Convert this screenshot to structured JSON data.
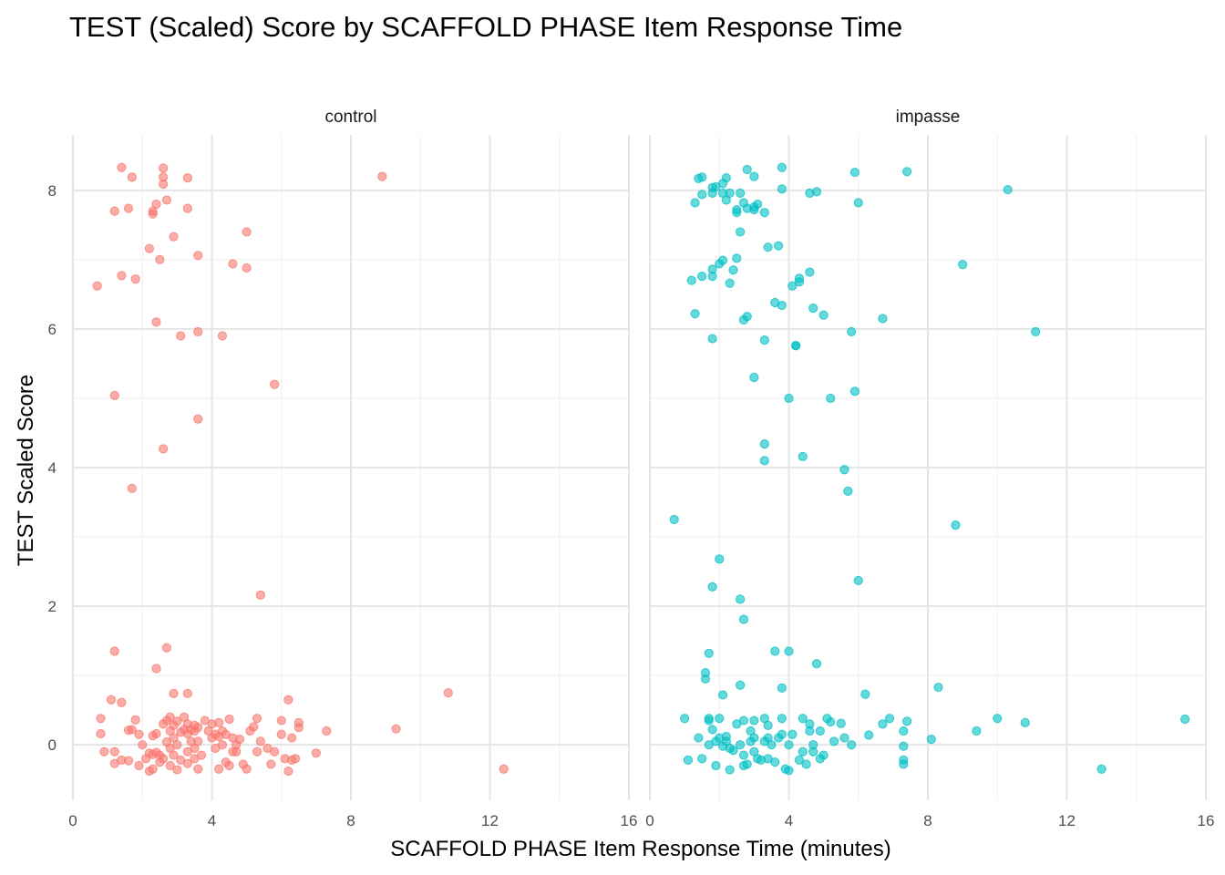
{
  "chart_data": {
    "type": "scatter",
    "title": "TEST (Scaled) Score by SCAFFOLD PHASE Item Response Time",
    "xlabel": "SCAFFOLD PHASE Item Response Time (minutes)",
    "ylabel": "TEST Scaled Score",
    "xlim": [
      0,
      16
    ],
    "ylim": [
      -0.8,
      8.8
    ],
    "x_ticks": [
      "0",
      "4",
      "8",
      "12",
      "16"
    ],
    "y_ticks": [
      "0",
      "2",
      "4",
      "6",
      "8"
    ],
    "grid": true,
    "legend": "none",
    "panels": [
      {
        "name": "control",
        "color": "#F8766D",
        "points": [
          [
            1.4,
            8.33
          ],
          [
            1.7,
            8.19
          ],
          [
            2.6,
            8.32
          ],
          [
            2.6,
            8.19
          ],
          [
            2.6,
            8.09
          ],
          [
            3.3,
            8.18
          ],
          [
            8.9,
            8.2
          ],
          [
            1.2,
            7.7
          ],
          [
            1.6,
            7.74
          ],
          [
            2.3,
            7.7
          ],
          [
            2.3,
            7.66
          ],
          [
            2.4,
            7.8
          ],
          [
            2.7,
            7.86
          ],
          [
            3.3,
            7.74
          ],
          [
            2.2,
            7.16
          ],
          [
            2.5,
            7.0
          ],
          [
            2.9,
            7.33
          ],
          [
            3.6,
            7.06
          ],
          [
            5.0,
            7.4
          ],
          [
            4.6,
            6.94
          ],
          [
            5.0,
            6.88
          ],
          [
            0.7,
            6.62
          ],
          [
            1.4,
            6.77
          ],
          [
            1.8,
            6.72
          ],
          [
            2.4,
            6.1
          ],
          [
            3.1,
            5.9
          ],
          [
            3.6,
            5.96
          ],
          [
            4.3,
            5.9
          ],
          [
            1.2,
            5.04
          ],
          [
            5.8,
            5.2
          ],
          [
            3.6,
            4.7
          ],
          [
            2.6,
            4.27
          ],
          [
            1.7,
            3.7
          ],
          [
            5.4,
            2.16
          ],
          [
            1.2,
            1.35
          ],
          [
            2.7,
            1.4
          ],
          [
            2.4,
            1.1
          ],
          [
            1.1,
            0.65
          ],
          [
            1.4,
            0.61
          ],
          [
            2.9,
            0.74
          ],
          [
            3.3,
            0.74
          ],
          [
            6.2,
            0.65
          ],
          [
            10.8,
            0.75
          ],
          [
            9.3,
            0.23
          ],
          [
            12.4,
            -0.35
          ],
          [
            0.8,
            0.38
          ],
          [
            0.8,
            0.16
          ],
          [
            0.9,
            -0.1
          ],
          [
            1.2,
            -0.1
          ],
          [
            1.2,
            -0.27
          ],
          [
            1.4,
            -0.22
          ],
          [
            1.6,
            -0.23
          ],
          [
            1.6,
            0.21
          ],
          [
            1.7,
            0.22
          ],
          [
            1.8,
            0.36
          ],
          [
            1.9,
            0.15
          ],
          [
            1.9,
            -0.3
          ],
          [
            2.0,
            0.0
          ],
          [
            2.1,
            -0.2
          ],
          [
            2.2,
            -0.38
          ],
          [
            2.2,
            -0.12
          ],
          [
            2.3,
            -0.35
          ],
          [
            2.3,
            0.13
          ],
          [
            2.3,
            -0.14
          ],
          [
            2.4,
            0.16
          ],
          [
            2.4,
            -0.11
          ],
          [
            2.5,
            -0.25
          ],
          [
            2.5,
            -0.15
          ],
          [
            2.6,
            0.3
          ],
          [
            2.6,
            -0.2
          ],
          [
            2.7,
            0.35
          ],
          [
            2.7,
            0.04
          ],
          [
            2.8,
            0.4
          ],
          [
            2.8,
            0.2
          ],
          [
            2.8,
            -0.05
          ],
          [
            2.8,
            -0.3
          ],
          [
            2.9,
            0.28
          ],
          [
            2.9,
            0.1
          ],
          [
            2.9,
            -0.15
          ],
          [
            3.0,
            0.34
          ],
          [
            3.0,
            0.0
          ],
          [
            3.0,
            -0.36
          ],
          [
            3.1,
            0.18
          ],
          [
            3.1,
            -0.22
          ],
          [
            3.2,
            0.4
          ],
          [
            3.2,
            0.22
          ],
          [
            3.3,
            0.3
          ],
          [
            3.3,
            0.16
          ],
          [
            3.3,
            -0.1
          ],
          [
            3.3,
            -0.27
          ],
          [
            3.4,
            0.22
          ],
          [
            3.4,
            0.05
          ],
          [
            3.5,
            0.28
          ],
          [
            3.5,
            0.2
          ],
          [
            3.5,
            -0.05
          ],
          [
            3.5,
            -0.2
          ],
          [
            3.6,
            0.25
          ],
          [
            3.6,
            -0.35
          ],
          [
            3.6,
            0.05
          ],
          [
            3.7,
            -0.15
          ],
          [
            3.8,
            0.35
          ],
          [
            3.9,
            0.2
          ],
          [
            4.0,
            0.3
          ],
          [
            4.0,
            0.1
          ],
          [
            4.1,
            0.15
          ],
          [
            4.1,
            -0.05
          ],
          [
            4.2,
            0.32
          ],
          [
            4.2,
            0.12
          ],
          [
            4.2,
            -0.35
          ],
          [
            4.3,
            0.0
          ],
          [
            4.3,
            0.2
          ],
          [
            4.4,
            -0.25
          ],
          [
            4.4,
            0.15
          ],
          [
            4.5,
            0.37
          ],
          [
            4.5,
            -0.3
          ],
          [
            4.6,
            0.1
          ],
          [
            4.6,
            -0.1
          ],
          [
            4.7,
            -0.1
          ],
          [
            4.7,
            0.0
          ],
          [
            4.8,
            0.08
          ],
          [
            4.9,
            -0.28
          ],
          [
            5.0,
            -0.35
          ],
          [
            5.1,
            0.2
          ],
          [
            5.2,
            0.26
          ],
          [
            5.3,
            -0.1
          ],
          [
            5.3,
            0.38
          ],
          [
            5.4,
            0.05
          ],
          [
            5.6,
            -0.05
          ],
          [
            5.7,
            -0.28
          ],
          [
            5.8,
            -0.1
          ],
          [
            6.0,
            0.35
          ],
          [
            6.0,
            0.15
          ],
          [
            6.1,
            -0.2
          ],
          [
            6.2,
            -0.38
          ],
          [
            6.3,
            -0.22
          ],
          [
            6.3,
            0.1
          ],
          [
            6.4,
            -0.2
          ],
          [
            6.5,
            0.25
          ],
          [
            6.5,
            0.32
          ],
          [
            7.0,
            -0.12
          ],
          [
            7.3,
            0.2
          ]
        ]
      },
      {
        "name": "impasse",
        "color": "#00BFC4",
        "points": [
          [
            1.4,
            8.17
          ],
          [
            1.5,
            8.19
          ],
          [
            1.8,
            8.04
          ],
          [
            1.9,
            8.05
          ],
          [
            2.1,
            8.1
          ],
          [
            2.2,
            8.18
          ],
          [
            2.8,
            8.3
          ],
          [
            3.0,
            8.2
          ],
          [
            3.8,
            8.33
          ],
          [
            5.9,
            8.26
          ],
          [
            7.4,
            8.27
          ],
          [
            10.3,
            8.01
          ],
          [
            1.3,
            7.82
          ],
          [
            1.5,
            7.94
          ],
          [
            1.8,
            7.96
          ],
          [
            2.1,
            7.96
          ],
          [
            2.2,
            7.86
          ],
          [
            2.3,
            7.96
          ],
          [
            2.5,
            7.72
          ],
          [
            2.5,
            7.68
          ],
          [
            2.6,
            7.96
          ],
          [
            2.7,
            7.82
          ],
          [
            2.8,
            7.74
          ],
          [
            3.0,
            7.76
          ],
          [
            3.0,
            7.72
          ],
          [
            3.1,
            7.8
          ],
          [
            3.3,
            7.68
          ],
          [
            3.8,
            8.02
          ],
          [
            4.6,
            7.96
          ],
          [
            4.8,
            7.98
          ],
          [
            6.0,
            7.82
          ],
          [
            2.6,
            7.4
          ],
          [
            3.4,
            7.18
          ],
          [
            3.7,
            7.2
          ],
          [
            2.1,
            6.99
          ],
          [
            2.0,
            6.94
          ],
          [
            2.5,
            7.02
          ],
          [
            1.2,
            6.7
          ],
          [
            1.5,
            6.76
          ],
          [
            1.8,
            6.86
          ],
          [
            1.8,
            6.76
          ],
          [
            2.4,
            6.85
          ],
          [
            2.3,
            6.66
          ],
          [
            4.1,
            6.62
          ],
          [
            4.3,
            6.73
          ],
          [
            4.3,
            6.68
          ],
          [
            4.6,
            6.82
          ],
          [
            9.0,
            6.93
          ],
          [
            1.3,
            6.22
          ],
          [
            3.6,
            6.38
          ],
          [
            3.8,
            6.34
          ],
          [
            2.8,
            6.18
          ],
          [
            2.7,
            6.13
          ],
          [
            4.7,
            6.3
          ],
          [
            5.0,
            6.2
          ],
          [
            6.7,
            6.15
          ],
          [
            1.8,
            5.86
          ],
          [
            3.3,
            5.84
          ],
          [
            4.2,
            5.76
          ],
          [
            4.2,
            5.76
          ],
          [
            5.8,
            5.96
          ],
          [
            11.1,
            5.96
          ],
          [
            3.0,
            5.3
          ],
          [
            4.0,
            5.0
          ],
          [
            5.2,
            5.0
          ],
          [
            5.9,
            5.1
          ],
          [
            3.3,
            4.34
          ],
          [
            3.3,
            4.1
          ],
          [
            4.4,
            4.16
          ],
          [
            5.6,
            3.97
          ],
          [
            5.7,
            3.66
          ],
          [
            0.7,
            3.25
          ],
          [
            8.8,
            3.17
          ],
          [
            2.0,
            2.68
          ],
          [
            1.8,
            2.28
          ],
          [
            6.0,
            2.37
          ],
          [
            2.6,
            2.1
          ],
          [
            2.7,
            1.81
          ],
          [
            1.7,
            1.32
          ],
          [
            3.6,
            1.35
          ],
          [
            4.0,
            1.35
          ],
          [
            4.8,
            1.17
          ],
          [
            1.6,
            1.04
          ],
          [
            1.6,
            0.95
          ],
          [
            2.6,
            0.86
          ],
          [
            2.1,
            0.72
          ],
          [
            3.8,
            0.82
          ],
          [
            6.2,
            0.73
          ],
          [
            8.3,
            0.83
          ],
          [
            1.0,
            0.38
          ],
          [
            1.7,
            0.38
          ],
          [
            1.7,
            0.35
          ],
          [
            1.8,
            0.22
          ],
          [
            2.0,
            0.38
          ],
          [
            2.2,
            0.12
          ],
          [
            2.5,
            0.3
          ],
          [
            2.7,
            0.35
          ],
          [
            2.9,
            0.2
          ],
          [
            3.0,
            0.35
          ],
          [
            3.3,
            0.38
          ],
          [
            3.4,
            0.28
          ],
          [
            3.8,
            0.38
          ],
          [
            4.4,
            0.38
          ],
          [
            4.6,
            0.3
          ],
          [
            4.9,
            0.2
          ],
          [
            5.1,
            0.38
          ],
          [
            5.2,
            0.33
          ],
          [
            5.5,
            0.31
          ],
          [
            6.3,
            0.14
          ],
          [
            6.7,
            0.3
          ],
          [
            6.9,
            0.38
          ],
          [
            7.3,
            0.2
          ],
          [
            7.4,
            0.34
          ],
          [
            8.1,
            0.08
          ],
          [
            9.4,
            0.2
          ],
          [
            10.0,
            0.38
          ],
          [
            10.8,
            0.32
          ],
          [
            15.4,
            0.37
          ],
          [
            1.1,
            -0.22
          ],
          [
            1.4,
            0.1
          ],
          [
            1.5,
            -0.2
          ],
          [
            1.7,
            0.0
          ],
          [
            1.9,
            -0.3
          ],
          [
            1.9,
            0.05
          ],
          [
            2.0,
            0.1
          ],
          [
            2.1,
            -0.02
          ],
          [
            2.2,
            0.05
          ],
          [
            2.3,
            -0.36
          ],
          [
            2.3,
            -0.05
          ],
          [
            2.4,
            -0.08
          ],
          [
            2.6,
            0.0
          ],
          [
            2.7,
            -0.3
          ],
          [
            2.7,
            -0.15
          ],
          [
            2.8,
            -0.28
          ],
          [
            2.9,
            0.05
          ],
          [
            3.0,
            -0.1
          ],
          [
            3.0,
            0.1
          ],
          [
            3.1,
            -0.2
          ],
          [
            3.2,
            -0.22
          ],
          [
            3.3,
            0.05
          ],
          [
            3.4,
            0.1
          ],
          [
            3.4,
            -0.2
          ],
          [
            3.5,
            0.0
          ],
          [
            3.6,
            -0.25
          ],
          [
            3.7,
            0.1
          ],
          [
            3.8,
            0.15
          ],
          [
            3.9,
            -0.35
          ],
          [
            4.0,
            -0.37
          ],
          [
            4.0,
            0.0
          ],
          [
            4.1,
            0.15
          ],
          [
            4.3,
            -0.22
          ],
          [
            4.4,
            -0.1
          ],
          [
            4.5,
            -0.28
          ],
          [
            4.6,
            0.2
          ],
          [
            4.7,
            -0.1
          ],
          [
            4.7,
            0.0
          ],
          [
            4.9,
            -0.2
          ],
          [
            5.0,
            -0.15
          ],
          [
            5.3,
            0.05
          ],
          [
            5.6,
            0.1
          ],
          [
            5.8,
            0.0
          ],
          [
            7.3,
            -0.22
          ],
          [
            7.3,
            -0.28
          ],
          [
            7.3,
            -0.02
          ],
          [
            13.0,
            -0.35
          ]
        ]
      }
    ]
  }
}
